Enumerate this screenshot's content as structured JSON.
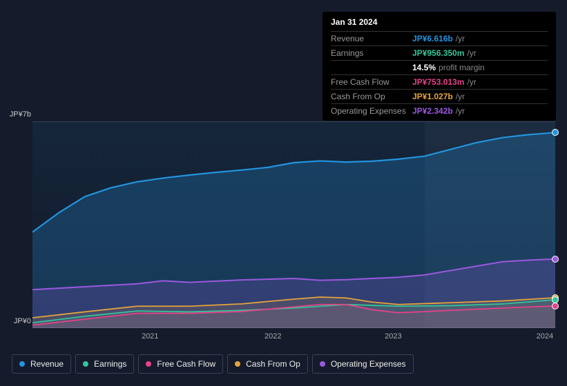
{
  "tooltip": {
    "title": "Jan 31 2024",
    "rows": [
      {
        "label": "Revenue",
        "value": "JP¥6.616b",
        "unit": "/yr",
        "color": "#2394df"
      },
      {
        "label": "Earnings",
        "value": "JP¥956.350m",
        "unit": "/yr",
        "color": "#36c499"
      },
      {
        "label": "",
        "value": "14.5%",
        "unit": "profit margin",
        "color": "#ffffff"
      },
      {
        "label": "Free Cash Flow",
        "value": "JP¥753.013m",
        "unit": "/yr",
        "color": "#e64189"
      },
      {
        "label": "Cash From Op",
        "value": "JP¥1.027b",
        "unit": "/yr",
        "color": "#e5a43b"
      },
      {
        "label": "Operating Expenses",
        "value": "JP¥2.342b",
        "unit": "/yr",
        "color": "#9b59e0"
      }
    ]
  },
  "chart": {
    "y_top_label": "JP¥7b",
    "y_bottom_label": "JP¥0",
    "plot_background_gradient": [
      "#15263b",
      "#131928"
    ],
    "highlight_band": {
      "from_pct": 75,
      "to_pct": 100,
      "color": "rgba(255,255,255,0.035)"
    },
    "x_ticks": [
      {
        "pct": 22.5,
        "label": "2021"
      },
      {
        "pct": 46,
        "label": "2022"
      },
      {
        "pct": 69,
        "label": "2023"
      },
      {
        "pct": 98,
        "label": "2024"
      }
    ],
    "series": [
      {
        "name": "Revenue",
        "color": "#2394df",
        "fill": "rgba(35,148,223,0.25)",
        "width": 2.2,
        "points": [
          {
            "x": 0,
            "y": 3.25
          },
          {
            "x": 5,
            "y": 3.9
          },
          {
            "x": 10,
            "y": 4.45
          },
          {
            "x": 15,
            "y": 4.75
          },
          {
            "x": 20,
            "y": 4.95
          },
          {
            "x": 25,
            "y": 5.08
          },
          {
            "x": 30,
            "y": 5.18
          },
          {
            "x": 35,
            "y": 5.27
          },
          {
            "x": 40,
            "y": 5.35
          },
          {
            "x": 45,
            "y": 5.44
          },
          {
            "x": 50,
            "y": 5.6
          },
          {
            "x": 55,
            "y": 5.66
          },
          {
            "x": 60,
            "y": 5.62
          },
          {
            "x": 65,
            "y": 5.65
          },
          {
            "x": 70,
            "y": 5.72
          },
          {
            "x": 75,
            "y": 5.82
          },
          {
            "x": 80,
            "y": 6.05
          },
          {
            "x": 85,
            "y": 6.28
          },
          {
            "x": 90,
            "y": 6.45
          },
          {
            "x": 95,
            "y": 6.55
          },
          {
            "x": 100,
            "y": 6.62
          }
        ]
      },
      {
        "name": "Operating Expenses",
        "color": "#9b59e0",
        "fill": "rgba(155,89,224,0.20)",
        "width": 2,
        "points": [
          {
            "x": 0,
            "y": 1.3
          },
          {
            "x": 10,
            "y": 1.4
          },
          {
            "x": 20,
            "y": 1.5
          },
          {
            "x": 25,
            "y": 1.6
          },
          {
            "x": 30,
            "y": 1.55
          },
          {
            "x": 40,
            "y": 1.63
          },
          {
            "x": 50,
            "y": 1.68
          },
          {
            "x": 55,
            "y": 1.62
          },
          {
            "x": 60,
            "y": 1.64
          },
          {
            "x": 70,
            "y": 1.72
          },
          {
            "x": 75,
            "y": 1.8
          },
          {
            "x": 80,
            "y": 1.95
          },
          {
            "x": 85,
            "y": 2.1
          },
          {
            "x": 90,
            "y": 2.25
          },
          {
            "x": 95,
            "y": 2.3
          },
          {
            "x": 100,
            "y": 2.34
          }
        ]
      },
      {
        "name": "Cash From Op",
        "color": "#e5a43b",
        "fill": "rgba(229,164,59,0.15)",
        "width": 1.8,
        "points": [
          {
            "x": 0,
            "y": 0.35
          },
          {
            "x": 10,
            "y": 0.55
          },
          {
            "x": 20,
            "y": 0.74
          },
          {
            "x": 30,
            "y": 0.74
          },
          {
            "x": 40,
            "y": 0.82
          },
          {
            "x": 50,
            "y": 0.98
          },
          {
            "x": 55,
            "y": 1.05
          },
          {
            "x": 60,
            "y": 1.02
          },
          {
            "x": 65,
            "y": 0.88
          },
          {
            "x": 70,
            "y": 0.8
          },
          {
            "x": 80,
            "y": 0.86
          },
          {
            "x": 90,
            "y": 0.92
          },
          {
            "x": 100,
            "y": 1.03
          }
        ]
      },
      {
        "name": "Earnings",
        "color": "#36c499",
        "fill": "rgba(54,196,153,0.12)",
        "width": 1.8,
        "points": [
          {
            "x": 0,
            "y": 0.18
          },
          {
            "x": 10,
            "y": 0.4
          },
          {
            "x": 20,
            "y": 0.58
          },
          {
            "x": 30,
            "y": 0.55
          },
          {
            "x": 40,
            "y": 0.6
          },
          {
            "x": 50,
            "y": 0.68
          },
          {
            "x": 60,
            "y": 0.8
          },
          {
            "x": 70,
            "y": 0.74
          },
          {
            "x": 80,
            "y": 0.76
          },
          {
            "x": 90,
            "y": 0.82
          },
          {
            "x": 100,
            "y": 0.96
          }
        ]
      },
      {
        "name": "Free Cash Flow",
        "color": "#e64189",
        "fill": "rgba(230,65,137,0.12)",
        "width": 1.8,
        "points": [
          {
            "x": 0,
            "y": 0.1
          },
          {
            "x": 10,
            "y": 0.3
          },
          {
            "x": 20,
            "y": 0.5
          },
          {
            "x": 30,
            "y": 0.5
          },
          {
            "x": 40,
            "y": 0.56
          },
          {
            "x": 50,
            "y": 0.72
          },
          {
            "x": 55,
            "y": 0.8
          },
          {
            "x": 60,
            "y": 0.8
          },
          {
            "x": 65,
            "y": 0.62
          },
          {
            "x": 70,
            "y": 0.52
          },
          {
            "x": 80,
            "y": 0.6
          },
          {
            "x": 90,
            "y": 0.68
          },
          {
            "x": 100,
            "y": 0.75
          }
        ]
      }
    ],
    "y_max": 7,
    "end_markers": true
  },
  "legend": [
    {
      "name": "Revenue",
      "color": "#2394df"
    },
    {
      "name": "Earnings",
      "color": "#36c499"
    },
    {
      "name": "Free Cash Flow",
      "color": "#e64189"
    },
    {
      "name": "Cash From Op",
      "color": "#e5a43b"
    },
    {
      "name": "Operating Expenses",
      "color": "#9b59e0"
    }
  ]
}
